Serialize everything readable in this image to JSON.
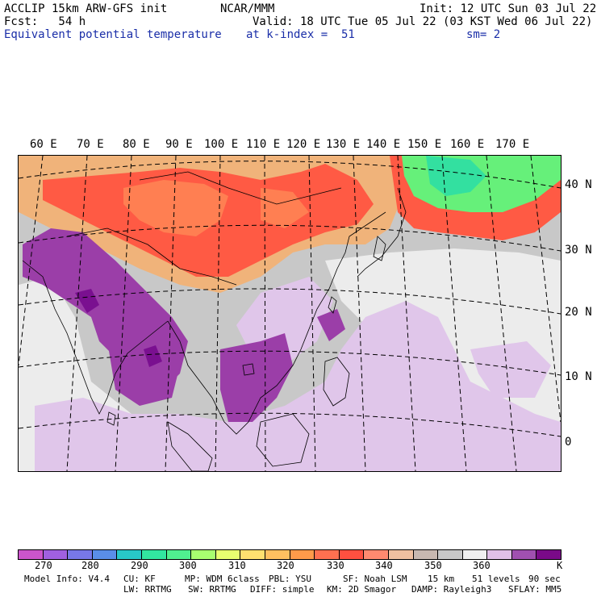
{
  "header": {
    "line1_left": "ACCLIP 15km ARW-GFS init",
    "line1_center": "NCAR/MMM",
    "line1_right": "Init: 12 UTC Sun 03 Jul 22",
    "line2_left": "Fcst:   54 h",
    "line2_right": "Valid: 18 UTC Tue 05 Jul 22 (03 KST Wed 06 Jul 22)",
    "line3_left": "Equivalent potential temperature",
    "line3_center": "at k-index =  51",
    "line3_right": "sm= 2"
  },
  "map": {
    "lon_labels": [
      "60 E",
      "70 E",
      "80 E",
      "90 E",
      "100 E",
      "110 E",
      "120 E",
      "130 E",
      "140 E",
      "150 E",
      "160 E",
      "170 E"
    ],
    "lat_labels": [
      "40 N",
      "30 N",
      "20 N",
      "10 N",
      "0"
    ],
    "field_colors": {
      "warm_low": "#f0b37a",
      "warm_mid": "#ff7f52",
      "warm_high": "#ff5a44",
      "cool_high": "#33e0a0",
      "cool_mid": "#66f07a",
      "neutral": "#c8c8c8",
      "light": "#ececec",
      "lilac": "#e0c6ea",
      "violet": "#9b3ea8",
      "deep_violet": "#7a1090"
    }
  },
  "colorbar": {
    "colors": [
      "#cc55cc",
      "#a060e0",
      "#7878e8",
      "#5a8ee8",
      "#28c8c8",
      "#32e6a0",
      "#50f090",
      "#a8ff70",
      "#e8ff70",
      "#ffe070",
      "#ffc060",
      "#ff9a4a",
      "#ff7050",
      "#ff5040",
      "#ff8a70",
      "#f0c0a0",
      "#c8b8b0",
      "#c8c8c8",
      "#f0f0f0",
      "#e0c0e8",
      "#a050b0",
      "#7a0a88"
    ],
    "labels": [
      "270",
      "280",
      "290",
      "300",
      "310",
      "320",
      "330",
      "340",
      "350",
      "360",
      "K"
    ]
  },
  "footer": {
    "row1": [
      "Model Info: V4.4",
      "CU: KF",
      "MP: WDM 6class",
      "PBL: YSU",
      "SF: Noah LSM",
      "15 km",
      "51 levels",
      "90 sec"
    ],
    "row2": [
      "LW: RRTMG",
      "SW: RRTMG",
      "DIFF: simple",
      "KM: 2D Smagor",
      "DAMP: Rayleigh3",
      "SFLAY: MM5"
    ]
  }
}
